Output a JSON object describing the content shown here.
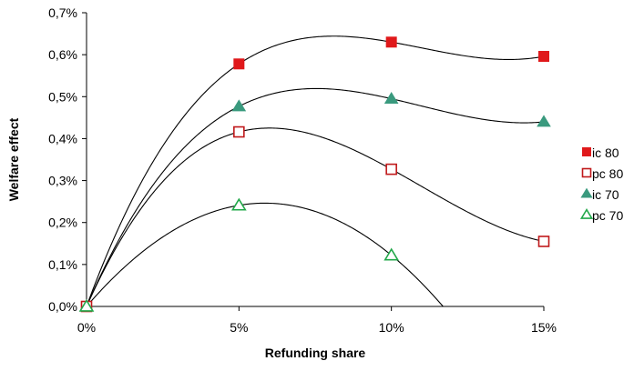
{
  "chart_data": {
    "type": "scatter",
    "title": "",
    "xlabel": "Refunding share",
    "ylabel": "Welfare effect",
    "x_ticks": [
      "0%",
      "5%",
      "10%",
      "15%"
    ],
    "y_ticks": [
      "0,0%",
      "0,1%",
      "0,2%",
      "0,3%",
      "0,4%",
      "0,5%",
      "0,6%",
      "0,7%"
    ],
    "xlim": [
      0,
      15
    ],
    "ylim": [
      0,
      0.7
    ],
    "grid": false,
    "legend_position": "right",
    "series": [
      {
        "name": "ic 80",
        "marker": "square-filled",
        "color": "#e0191b",
        "x": [
          0,
          5,
          10,
          15
        ],
        "y": [
          0.0,
          0.578,
          0.63,
          0.596
        ]
      },
      {
        "name": "pc 80",
        "marker": "square-open",
        "color": "#c0191b",
        "x": [
          0,
          5,
          10,
          15
        ],
        "y": [
          0.0,
          0.416,
          0.327,
          0.155
        ]
      },
      {
        "name": "ic 70",
        "marker": "triangle-filled",
        "color": "#3a9a7e",
        "x": [
          0,
          5,
          10,
          15
        ],
        "y": [
          0.0,
          0.477,
          0.495,
          0.44
        ]
      },
      {
        "name": "pc 70",
        "marker": "triangle-open",
        "color": "#22a84a",
        "x": [
          0,
          5,
          10
        ],
        "y": [
          0.0,
          0.241,
          0.122
        ]
      }
    ],
    "trend_color": "#000000"
  }
}
